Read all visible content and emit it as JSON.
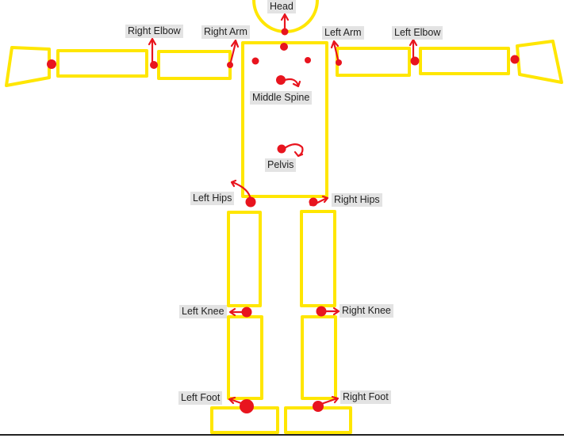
{
  "diagram": {
    "colors": {
      "body_outline": "#ffe600",
      "joint_marker": "#e8141e",
      "label_background": "#e3e3e3"
    },
    "labels": {
      "head": "Head",
      "right_elbow": "Right Elbow",
      "right_arm": "Right Arm",
      "left_arm": "Left Arm",
      "left_elbow": "Left Elbow",
      "middle_spine": "Middle Spine",
      "pelvis": "Pelvis",
      "left_hips": "Left Hips",
      "right_hips": "Right Hips",
      "left_knee": "Left Knee",
      "right_knee": "Right Knee",
      "left_foot": "Left Foot",
      "right_foot": "Right Foot"
    }
  }
}
